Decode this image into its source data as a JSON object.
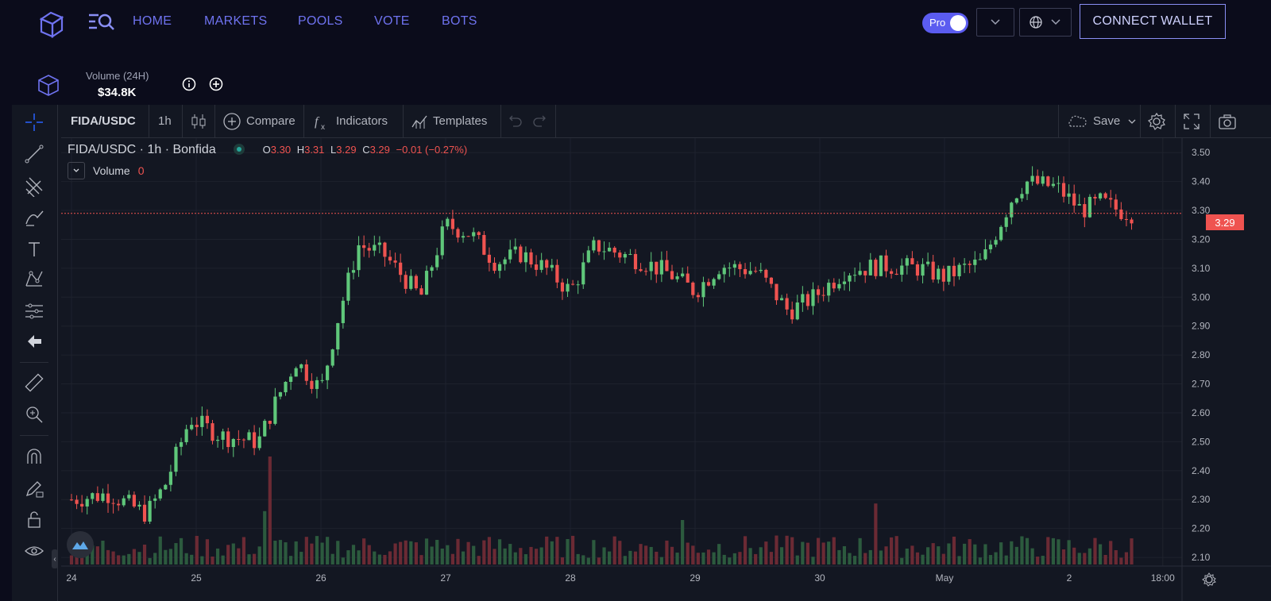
{
  "nav": {
    "links": [
      "HOME",
      "MARKETS",
      "POOLS",
      "VOTE",
      "BOTS"
    ],
    "pro_label": "Pro",
    "connect_label": "CONNECT WALLET"
  },
  "stats": {
    "volume_label": "Volume (24H)",
    "volume_value": "$34.8K"
  },
  "toolbar": {
    "symbol": "FIDA/USDC",
    "interval": "1h",
    "compare": "Compare",
    "indicators": "Indicators",
    "templates": "Templates",
    "save": "Save"
  },
  "legend": {
    "title": "FIDA/USDC · 1h · Bonfida",
    "open_label": "O",
    "open": "3.30",
    "high_label": "H",
    "high": "3.31",
    "low_label": "L",
    "low": "3.29",
    "close_label": "C",
    "close": "3.29",
    "change": "−0.01 (−0.27%)",
    "volume_label": "Volume",
    "volume_value": "0"
  },
  "colors": {
    "up": "#26a69a",
    "up_candle": "#5fc77a",
    "down": "#ef5350",
    "accent": "#6f73f0",
    "background": "#131722"
  },
  "chart_data": {
    "type": "candlestick",
    "symbol": "FIDA/USDC",
    "interval": "1h",
    "last_price": "3.29",
    "ylim": [
      2.07,
      3.55
    ],
    "y_ticks": [
      "3.50",
      "3.40",
      "3.30",
      "3.20",
      "3.10",
      "3.00",
      "2.90",
      "2.80",
      "2.70",
      "2.60",
      "2.50",
      "2.40",
      "2.30",
      "2.20",
      "2.10"
    ],
    "x_ticks": [
      "24",
      "25",
      "26",
      "27",
      "28",
      "29",
      "30",
      "May",
      "2",
      "18:00"
    ],
    "x_tick_positions_days": [
      0,
      1,
      2,
      3,
      4,
      5,
      6,
      7,
      8,
      8.75
    ],
    "close_anchors_days": [
      0,
      0.3,
      0.6,
      0.75,
      0.95,
      1.2,
      1.5,
      1.65,
      1.8,
      2.0,
      2.15,
      2.3,
      2.5,
      2.6,
      2.8,
      3.0,
      3.2,
      3.4,
      3.6,
      3.8,
      4.0,
      4.2,
      4.4,
      4.6,
      4.8,
      5.0,
      5.2,
      5.5,
      5.75,
      5.95,
      6.2,
      6.5,
      6.8,
      7.0,
      7.15,
      7.3,
      7.55,
      7.65,
      7.9,
      8.1,
      8.25,
      8.4,
      8.5
    ],
    "close_anchors_values": [
      2.3,
      2.32,
      2.25,
      2.35,
      2.58,
      2.52,
      2.5,
      2.65,
      2.78,
      2.68,
      2.95,
      3.18,
      3.15,
      3.1,
      3.0,
      3.25,
      3.22,
      3.12,
      3.15,
      3.1,
      3.02,
      3.18,
      3.15,
      3.12,
      3.08,
      3.02,
      3.11,
      3.09,
      2.95,
      3.0,
      3.09,
      3.11,
      3.1,
      3.07,
      3.1,
      3.12,
      3.35,
      3.4,
      3.38,
      3.3,
      3.33,
      3.3,
      3.29
    ],
    "volume_spikes": [
      {
        "day": 1.6,
        "value": 0.85
      },
      {
        "day": 1.55,
        "value": 0.42
      },
      {
        "day": 4.9,
        "value": 0.35
      },
      {
        "day": 6.45,
        "value": 0.48
      }
    ],
    "grid": true
  }
}
